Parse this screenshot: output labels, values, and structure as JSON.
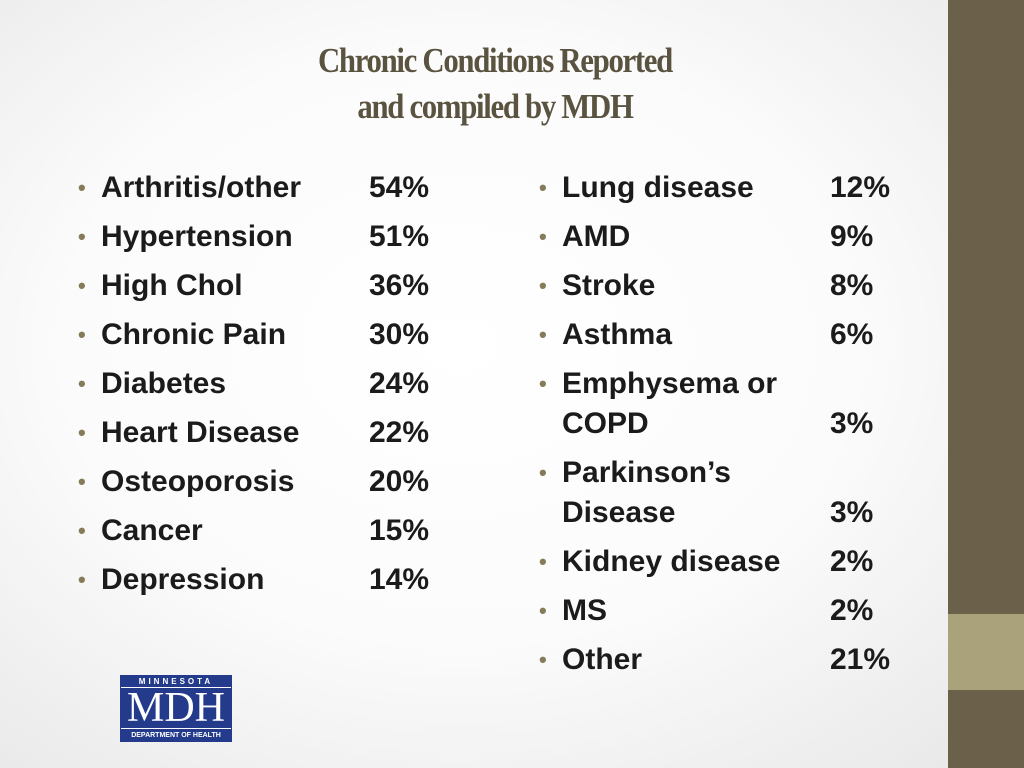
{
  "header": {
    "title": [
      "Chronic Conditions Reported",
      "and compiled by MDH"
    ]
  },
  "left_list": [
    {
      "label": "Arthritis/other",
      "value": "54%"
    },
    {
      "label": "Hypertension",
      "value": "51%"
    },
    {
      "label": "High Chol",
      "value": "36%"
    },
    {
      "label": "Chronic Pain",
      "value": "30%"
    },
    {
      "label": "Diabetes",
      "value": "24%"
    },
    {
      "label": "Heart Disease",
      "value": "22%"
    },
    {
      "label": "Osteoporosis",
      "value": "20%"
    },
    {
      "label": "Cancer",
      "value": "15%"
    },
    {
      "label": "Depression",
      "value": "14%"
    }
  ],
  "right_list": [
    {
      "label": "Lung disease",
      "value": "12%"
    },
    {
      "label": "AMD",
      "value": "9%"
    },
    {
      "label": "Stroke",
      "value": "8%"
    },
    {
      "label": "Asthma",
      "value": "6%"
    },
    {
      "label": "Emphysema or COPD",
      "value": "3%"
    },
    {
      "label": "Parkinson’s Disease",
      "value": "3%"
    },
    {
      "label": "Kidney disease",
      "value": "2%"
    },
    {
      "label": "MS",
      "value": "2%"
    },
    {
      "label": "Other",
      "value": "21%"
    }
  ],
  "logo": {
    "top": "MINNESOTA",
    "main": "MDH",
    "bottom": "DEPARTMENT OF HEALTH"
  }
}
